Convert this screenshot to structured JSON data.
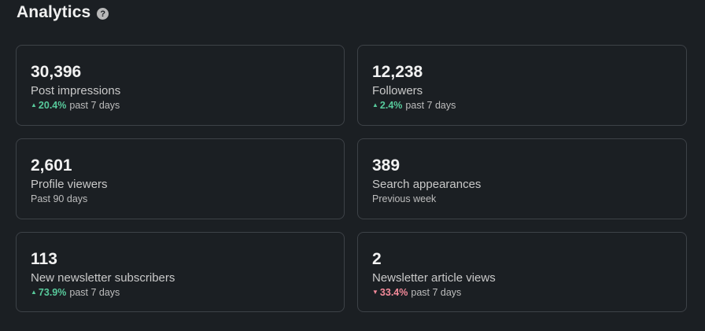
{
  "header": {
    "title": "Analytics",
    "help_glyph": "?"
  },
  "cards": [
    {
      "value": "30,396",
      "label": "Post impressions",
      "trend": "up",
      "change": "20.4%",
      "period": "past 7 days"
    },
    {
      "value": "12,238",
      "label": "Followers",
      "trend": "up",
      "change": "2.4%",
      "period": "past 7 days"
    },
    {
      "value": "2,601",
      "label": "Profile viewers",
      "period": "Past 90 days"
    },
    {
      "value": "389",
      "label": "Search appearances",
      "period": "Previous week"
    },
    {
      "value": "113",
      "label": "New newsletter subscribers",
      "trend": "up",
      "change": "73.9%",
      "period": "past 7 days"
    },
    {
      "value": "2",
      "label": "Newsletter article views",
      "trend": "down",
      "change": "33.4%",
      "period": "past 7 days"
    }
  ],
  "colors": {
    "up": "#57c99b",
    "down": "#f48a9a",
    "background": "#1b1f23",
    "border": "#3d4247"
  },
  "icons": {
    "up": "caret-up-icon",
    "down": "caret-down-icon",
    "help": "question-circle-icon"
  }
}
